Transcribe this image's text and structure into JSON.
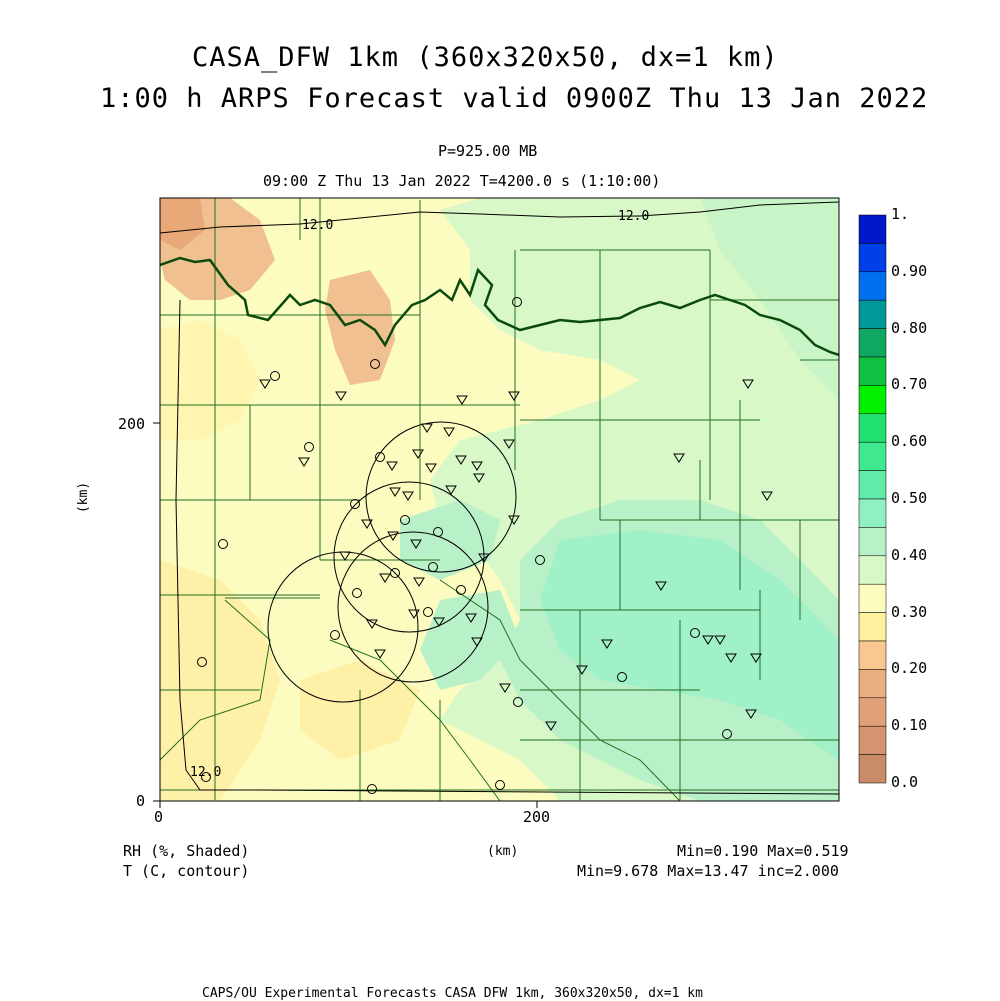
{
  "header": {
    "title_line1": "CASA_DFW 1km (360x320x50, dx=1 km)",
    "title_line2": "1:00 h ARPS Forecast valid 0900Z Thu 13 Jan 2022",
    "pressure": "P=925.00 MB",
    "time_line": "09:00 Z Thu 13 Jan 2022   T=4200.0 s (1:10:00)"
  },
  "axes": {
    "x_unit": "(km)",
    "y_unit": "(km)",
    "x_ticks": [
      "0",
      "200"
    ],
    "y_ticks": [
      "0",
      "200"
    ]
  },
  "contour_labels": [
    "12.0",
    "12.0",
    "12.0"
  ],
  "colorbar": {
    "labels": [
      "1.",
      "0.90",
      "0.80",
      "0.70",
      "0.60",
      "0.50",
      "0.40",
      "0.30",
      "0.20",
      "0.10",
      "0.0"
    ],
    "colors": [
      "#0018c8",
      "#0040e8",
      "#0070f0",
      "#009898",
      "#10a860",
      "#10c040",
      "#00f000",
      "#20e070",
      "#40e890",
      "#60eca8",
      "#90f0c0",
      "#b8f0c8",
      "#d8f8c8",
      "#fcfcc0",
      "#fff0a0",
      "#f8c890",
      "#e8b080",
      "#e0a078",
      "#d49470",
      "#c88c68"
    ]
  },
  "footer": {
    "field1": "RH (%, Shaded)",
    "field2": "T (C, contour)",
    "minmax1": "Min=0.190 Max=0.519",
    "minmax2": "Min=9.678 Max=13.47 inc=2.000",
    "credit": "CAPS/OU Experimental Forecasts  CASA DFW 1km, 360x320x50, dx=1 km"
  }
}
